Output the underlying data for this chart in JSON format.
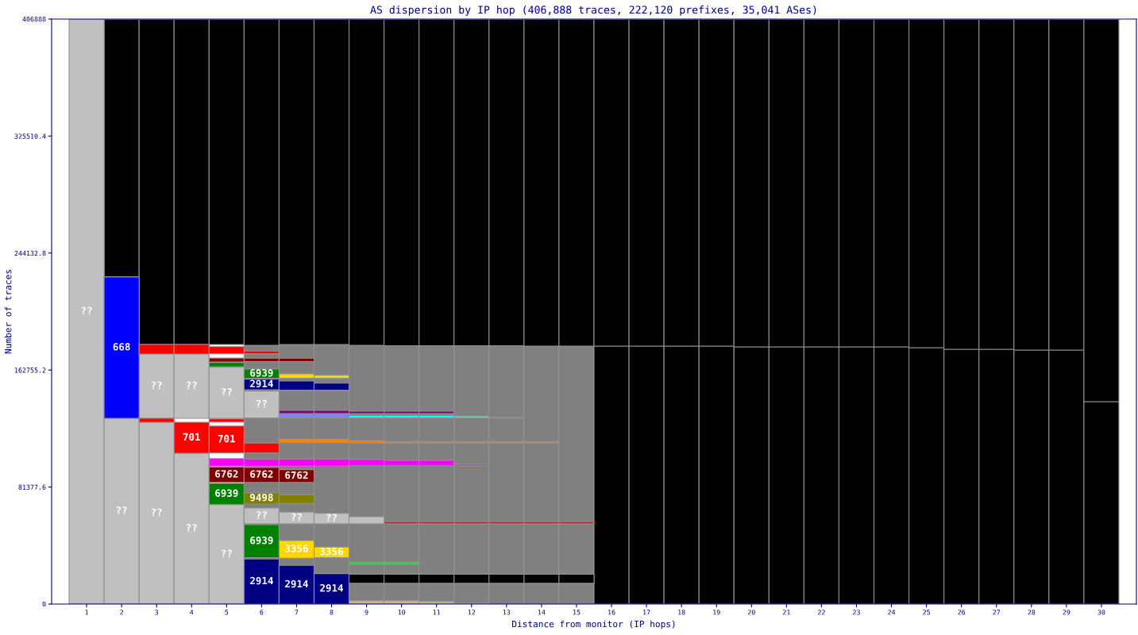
{
  "chart_data": {
    "type": "bar",
    "title": "AS dispersion by IP hop (406,888 traces, 222,120 prefixes, 35,041 ASes)",
    "xlabel": "Distance from monitor (IP hops)",
    "ylabel": "Number of traces",
    "categories": [
      "1",
      "2",
      "3",
      "4",
      "5",
      "6",
      "7",
      "8",
      "9",
      "10",
      "11",
      "12",
      "13",
      "14",
      "15",
      "16",
      "17",
      "18",
      "19",
      "20",
      "21",
      "22",
      "23",
      "24",
      "25",
      "26",
      "27",
      "28",
      "29",
      "30"
    ],
    "ylim": [
      0,
      406888
    ],
    "yticks": [
      0,
      81377.6,
      162755.2,
      244132.8,
      325510.4,
      406888
    ],
    "series": [
      {
        "color": "#808080",
        "base": [
          null,
          null,
          null,
          null,
          null,
          0,
          0,
          0,
          0,
          0,
          0,
          0,
          0,
          0,
          0,
          null,
          null,
          null,
          null,
          null,
          null,
          null,
          null,
          null,
          null,
          null,
          null,
          null,
          null,
          null
        ],
        "values": [
          null,
          null,
          null,
          null,
          null,
          180000,
          180500,
          180500,
          180000,
          179700,
          179700,
          179700,
          179700,
          179400,
          179400,
          null,
          null,
          null,
          null,
          null,
          null,
          null,
          null,
          null,
          null,
          null,
          null,
          null,
          null,
          null
        ]
      },
      {
        "color": "#000000",
        "base": [
          null,
          null,
          null,
          null,
          null,
          null,
          null,
          null,
          null,
          null,
          null,
          null,
          null,
          null,
          null,
          0,
          0,
          0,
          0,
          0,
          0,
          0,
          0,
          0,
          0,
          0,
          0,
          0,
          0,
          0
        ],
        "values": [
          null,
          null,
          null,
          null,
          null,
          null,
          null,
          null,
          null,
          null,
          null,
          null,
          null,
          null,
          null,
          179400,
          179400,
          179400,
          179400,
          178900,
          178900,
          178900,
          178900,
          178900,
          178300,
          177200,
          177200,
          176700,
          176700,
          140800
        ]
      },
      {
        "color": "#000000",
        "base": [
          null,
          227500,
          180500,
          180500,
          180500,
          180000,
          180500,
          180500,
          180000,
          179700,
          179700,
          179700,
          179700,
          179400,
          179400,
          179400,
          179400,
          179400,
          179400,
          178900,
          178900,
          178900,
          178900,
          178900,
          178300,
          177200,
          177200,
          176700,
          176700,
          140800
        ],
        "values": [
          null,
          179300,
          226300,
          226300,
          226300,
          226800,
          226300,
          226300,
          226800,
          227100,
          227100,
          227100,
          227100,
          227400,
          227400,
          227400,
          227400,
          227400,
          227400,
          227900,
          227900,
          227900,
          227900,
          227900,
          228500,
          229600,
          229600,
          230100,
          230100,
          266000
        ]
      },
      {
        "name": "??",
        "color": "#c0c0c0",
        "base": [
          0,
          0,
          0,
          0,
          0,
          55800,
          55800,
          55800,
          null,
          null,
          null,
          null,
          null,
          null,
          null,
          null,
          null,
          null,
          null,
          null,
          null,
          null,
          null,
          null,
          null,
          null,
          null,
          null,
          null,
          null
        ],
        "values": [
          406888,
          129200,
          126400,
          104900,
          69200,
          11000,
          8200,
          7300,
          null,
          null,
          null,
          null,
          null,
          null,
          null,
          null,
          null,
          null,
          null,
          null,
          null,
          null,
          null,
          null,
          null,
          null,
          null,
          null,
          null,
          null
        ]
      },
      {
        "color": "#c0c0c0",
        "base": [
          null,
          null,
          null,
          null,
          null,
          null,
          null,
          null,
          55800,
          null,
          null,
          null,
          null,
          null,
          null,
          null,
          null,
          null,
          null,
          null,
          null,
          null,
          null,
          null,
          null,
          null,
          null,
          null,
          null,
          null
        ],
        "values": [
          null,
          null,
          null,
          null,
          null,
          null,
          null,
          null,
          4900,
          null,
          null,
          null,
          null,
          null,
          null,
          null,
          null,
          null,
          null,
          null,
          null,
          null,
          null,
          null,
          null,
          null,
          null,
          null,
          null,
          null
        ]
      },
      {
        "name": "??",
        "color": "#c0c0c0",
        "base": [
          null,
          null,
          129200,
          129200,
          129200,
          129400,
          null,
          null,
          null,
          null,
          null,
          null,
          null,
          null,
          null,
          null,
          null,
          null,
          null,
          null,
          null,
          null,
          null,
          null,
          null,
          null,
          null,
          null,
          null,
          null
        ],
        "values": [
          null,
          null,
          44700,
          44700,
          35500,
          18700,
          null,
          null,
          null,
          null,
          null,
          null,
          null,
          null,
          null,
          null,
          null,
          null,
          null,
          null,
          null,
          null,
          null,
          null,
          null,
          null,
          null,
          null,
          null,
          null
        ]
      },
      {
        "name": "668",
        "color": "#0000ff",
        "base": [
          null,
          129200,
          null,
          null,
          null,
          null,
          null,
          null,
          null,
          null,
          null,
          null,
          null,
          null,
          null,
          null,
          null,
          null,
          null,
          null,
          null,
          null,
          null,
          null,
          null,
          null,
          null,
          null,
          null,
          null
        ],
        "values": [
          null,
          98300,
          null,
          null,
          null,
          null,
          null,
          null,
          null,
          null,
          null,
          null,
          null,
          null,
          null,
          null,
          null,
          null,
          null,
          null,
          null,
          null,
          null,
          null,
          null,
          null,
          null,
          null,
          null,
          null
        ]
      },
      {
        "name": "701",
        "color": "#ff0000",
        "base": [
          null,
          null,
          null,
          104900,
          105100,
          null,
          null,
          null,
          null,
          null,
          null,
          null,
          null,
          null,
          null,
          null,
          null,
          null,
          null,
          null,
          null,
          null,
          null,
          null,
          null,
          null,
          null,
          null,
          null,
          null
        ],
        "values": [
          null,
          null,
          null,
          21500,
          18700,
          null,
          null,
          null,
          null,
          null,
          null,
          null,
          null,
          null,
          null,
          null,
          null,
          null,
          null,
          null,
          null,
          null,
          null,
          null,
          null,
          null,
          null,
          null,
          null,
          null
        ]
      },
      {
        "color": "#ff0000",
        "base": [
          null,
          null,
          null,
          null,
          null,
          105100,
          null,
          null,
          null,
          null,
          null,
          null,
          null,
          null,
          null,
          null,
          null,
          null,
          null,
          null,
          null,
          null,
          null,
          null,
          null,
          null,
          null,
          null,
          null,
          null
        ],
        "values": [
          null,
          null,
          null,
          null,
          null,
          6800,
          null,
          null,
          null,
          null,
          null,
          null,
          null,
          null,
          null,
          null,
          null,
          null,
          null,
          null,
          null,
          null,
          null,
          null,
          null,
          null,
          null,
          null,
          null,
          null
        ]
      },
      {
        "color": "#ff0000",
        "base": [
          null,
          null,
          126400,
          null,
          126600,
          null,
          null,
          null,
          null,
          null,
          null,
          null,
          null,
          null,
          null,
          null,
          null,
          null,
          null,
          null,
          null,
          null,
          null,
          null,
          null,
          null,
          null,
          null,
          null,
          null
        ],
        "values": [
          null,
          null,
          2800,
          null,
          2200,
          null,
          null,
          null,
          null,
          null,
          null,
          null,
          null,
          null,
          null,
          null,
          null,
          null,
          null,
          null,
          null,
          null,
          null,
          null,
          null,
          null,
          null,
          null,
          null,
          null
        ]
      },
      {
        "color": "#ff0000",
        "base": [
          null,
          null,
          173900,
          173900,
          174100,
          174100,
          null,
          null,
          null,
          null,
          null,
          null,
          null,
          null,
          null,
          null,
          null,
          null,
          null,
          null,
          null,
          null,
          null,
          null,
          null,
          null,
          null,
          null,
          null,
          null
        ],
        "values": [
          null,
          null,
          6600,
          6600,
          4900,
          1900,
          null,
          null,
          null,
          null,
          null,
          null,
          null,
          null,
          null,
          null,
          null,
          null,
          null,
          null,
          null,
          null,
          null,
          null,
          null,
          null,
          null,
          null,
          null,
          null
        ]
      },
      {
        "name": "2914",
        "color": "#000080",
        "base": [
          null,
          null,
          null,
          null,
          null,
          0,
          0,
          0,
          null,
          null,
          null,
          null,
          null,
          null,
          null,
          null,
          null,
          null,
          null,
          null,
          null,
          null,
          null,
          null,
          null,
          null,
          null,
          null,
          null,
          null
        ],
        "values": [
          null,
          null,
          null,
          null,
          null,
          31300,
          26900,
          21200,
          null,
          null,
          null,
          null,
          null,
          null,
          null,
          null,
          null,
          null,
          null,
          null,
          null,
          null,
          null,
          null,
          null,
          null,
          null,
          null,
          null,
          null
        ]
      },
      {
        "name": "2914",
        "color": "#000080",
        "base": [
          null,
          null,
          null,
          null,
          null,
          149100,
          null,
          null,
          null,
          null,
          null,
          null,
          null,
          null,
          null,
          null,
          null,
          null,
          null,
          null,
          null,
          null,
          null,
          null,
          null,
          null,
          null,
          null,
          null,
          null
        ],
        "values": [
          null,
          null,
          null,
          null,
          null,
          7300,
          null,
          null,
          null,
          null,
          null,
          null,
          null,
          null,
          null,
          null,
          null,
          null,
          null,
          null,
          null,
          null,
          null,
          null,
          null,
          null,
          null,
          null,
          null,
          null
        ]
      },
      {
        "color": "#000080",
        "base": [
          null,
          null,
          null,
          null,
          null,
          null,
          148700,
          148700,
          null,
          null,
          null,
          null,
          null,
          null,
          null,
          null,
          null,
          null,
          null,
          null,
          null,
          null,
          null,
          null,
          null,
          null,
          null,
          null,
          null,
          null
        ],
        "values": [
          null,
          null,
          null,
          null,
          null,
          null,
          6400,
          4900,
          null,
          null,
          null,
          null,
          null,
          null,
          null,
          null,
          null,
          null,
          null,
          null,
          null,
          null,
          null,
          null,
          null,
          null,
          null,
          null,
          null,
          null
        ]
      },
      {
        "name": "6939",
        "color": "#008000",
        "base": [
          null,
          null,
          null,
          null,
          69200,
          32200,
          null,
          null,
          null,
          null,
          null,
          null,
          null,
          null,
          null,
          null,
          null,
          null,
          null,
          null,
          null,
          null,
          null,
          null,
          null,
          null,
          null,
          null,
          null,
          null
        ],
        "values": [
          null,
          null,
          null,
          null,
          14700,
          23000,
          null,
          null,
          null,
          null,
          null,
          null,
          null,
          null,
          null,
          null,
          null,
          null,
          null,
          null,
          null,
          null,
          null,
          null,
          null,
          null,
          null,
          null,
          null,
          null
        ]
      },
      {
        "name": "6939",
        "color": "#008000",
        "base": [
          null,
          null,
          null,
          null,
          null,
          157000,
          null,
          null,
          null,
          null,
          null,
          null,
          null,
          null,
          null,
          null,
          null,
          null,
          null,
          null,
          null,
          null,
          null,
          null,
          null,
          null,
          null,
          null,
          null,
          null
        ],
        "values": [
          null,
          null,
          null,
          null,
          null,
          6400,
          null,
          null,
          null,
          null,
          null,
          null,
          null,
          null,
          null,
          null,
          null,
          null,
          null,
          null,
          null,
          null,
          null,
          null,
          null,
          null,
          null,
          null,
          null,
          null
        ]
      },
      {
        "color": "#008000",
        "base": [
          null,
          null,
          null,
          null,
          165100,
          null,
          null,
          null,
          null,
          null,
          null,
          null,
          null,
          null,
          null,
          null,
          null,
          null,
          null,
          null,
          null,
          null,
          null,
          null,
          null,
          null,
          null,
          null,
          null,
          null
        ],
        "values": [
          null,
          null,
          null,
          null,
          2900,
          null,
          null,
          null,
          null,
          null,
          null,
          null,
          null,
          null,
          null,
          null,
          null,
          null,
          null,
          null,
          null,
          null,
          null,
          null,
          null,
          null,
          null,
          null,
          null,
          null
        ]
      },
      {
        "name": "6762",
        "color": "#800000",
        "base": [
          null,
          null,
          null,
          null,
          84600,
          84600,
          84600,
          null,
          null,
          null,
          null,
          null,
          null,
          null,
          null,
          null,
          null,
          null,
          null,
          null,
          null,
          null,
          null,
          null,
          null,
          null,
          null,
          null,
          null,
          null
        ],
        "values": [
          null,
          null,
          null,
          null,
          10700,
          10400,
          8900,
          null,
          null,
          null,
          null,
          null,
          null,
          null,
          null,
          null,
          null,
          null,
          null,
          null,
          null,
          null,
          null,
          null,
          null,
          null,
          null,
          null,
          null,
          null
        ]
      },
      {
        "color": "#800000",
        "base": [
          null,
          null,
          null,
          null,
          168400,
          168600,
          168600,
          null,
          null,
          null,
          null,
          null,
          null,
          null,
          null,
          null,
          null,
          null,
          null,
          null,
          null,
          null,
          null,
          null,
          null,
          null,
          null,
          null,
          null,
          null
        ],
        "values": [
          null,
          null,
          null,
          null,
          2700,
          2400,
          2400,
          null,
          null,
          null,
          null,
          null,
          null,
          null,
          null,
          null,
          null,
          null,
          null,
          null,
          null,
          null,
          null,
          null,
          null,
          null,
          null,
          null,
          null,
          null
        ]
      },
      {
        "color": "#ff00ff",
        "base": [
          null,
          null,
          null,
          null,
          95900,
          95900,
          95900,
          95900,
          96200,
          96200,
          96200,
          96200,
          null,
          null,
          null,
          null,
          null,
          null,
          null,
          null,
          null,
          null,
          null,
          null,
          null,
          null,
          null,
          null,
          null,
          null
        ],
        "values": [
          null,
          null,
          null,
          null,
          5300,
          5000,
          5000,
          5000,
          4300,
          3800,
          3800,
          1200,
          null,
          null,
          null,
          null,
          null,
          null,
          null,
          null,
          null,
          null,
          null,
          null,
          null,
          null,
          null,
          null,
          null,
          null
        ]
      },
      {
        "name": "9498",
        "color": "#808000",
        "base": [
          null,
          null,
          null,
          null,
          null,
          69600,
          null,
          null,
          null,
          null,
          null,
          null,
          null,
          null,
          null,
          null,
          null,
          null,
          null,
          null,
          null,
          null,
          null,
          null,
          null,
          null,
          null,
          null,
          null,
          null
        ],
        "values": [
          null,
          null,
          null,
          null,
          null,
          7900,
          null,
          null,
          null,
          null,
          null,
          null,
          null,
          null,
          null,
          null,
          null,
          null,
          null,
          null,
          null,
          null,
          null,
          null,
          null,
          null,
          null,
          null,
          null,
          null
        ]
      },
      {
        "color": "#808000",
        "base": [
          null,
          null,
          null,
          null,
          null,
          null,
          70000,
          null,
          null,
          null,
          null,
          null,
          null,
          null,
          null,
          null,
          null,
          null,
          null,
          null,
          null,
          null,
          null,
          null,
          null,
          null,
          null,
          null,
          null,
          null
        ],
        "values": [
          null,
          null,
          null,
          null,
          null,
          null,
          6000,
          null,
          null,
          null,
          null,
          null,
          null,
          null,
          null,
          null,
          null,
          null,
          null,
          null,
          null,
          null,
          null,
          null,
          null,
          null,
          null,
          null,
          null,
          null
        ]
      },
      {
        "name": "3356",
        "color": "#ffd700",
        "base": [
          null,
          null,
          null,
          null,
          null,
          null,
          31900,
          32200,
          null,
          null,
          null,
          null,
          null,
          null,
          null,
          null,
          null,
          null,
          null,
          null,
          null,
          null,
          null,
          null,
          null,
          null,
          null,
          null,
          null,
          null
        ],
        "values": [
          null,
          null,
          null,
          null,
          null,
          null,
          12300,
          7500,
          null,
          null,
          null,
          null,
          null,
          null,
          null,
          null,
          null,
          null,
          null,
          null,
          null,
          null,
          null,
          null,
          null,
          null,
          null,
          null,
          null,
          null
        ]
      },
      {
        "color": "#ffd700",
        "base": [
          null,
          null,
          null,
          null,
          null,
          null,
          157000,
          157000,
          null,
          null,
          null,
          null,
          null,
          null,
          null,
          null,
          null,
          null,
          null,
          null,
          null,
          null,
          null,
          null,
          null,
          null,
          null,
          null,
          null,
          null
        ],
        "values": [
          null,
          null,
          null,
          null,
          null,
          null,
          3100,
          2200,
          null,
          null,
          null,
          null,
          null,
          null,
          null,
          null,
          null,
          null,
          null,
          null,
          null,
          null,
          null,
          null,
          null,
          null,
          null,
          null,
          null,
          null
        ]
      },
      {
        "color": "#ff8000",
        "base": [
          null,
          null,
          null,
          null,
          null,
          null,
          112200,
          112200,
          111900,
          111900,
          111900,
          111900,
          111900,
          111900,
          null,
          null,
          null,
          null,
          null,
          null,
          null,
          null,
          null,
          null,
          null,
          null,
          null,
          null,
          null,
          null
        ],
        "values": [
          null,
          null,
          null,
          null,
          null,
          null,
          2500,
          2500,
          1800,
          1200,
          1200,
          1200,
          1200,
          1200,
          null,
          null,
          null,
          null,
          null,
          null,
          null,
          null,
          null,
          null,
          null,
          null,
          null,
          null,
          null,
          null
        ]
      },
      {
        "color": "#00ffff",
        "base": [
          null,
          null,
          null,
          null,
          null,
          null,
          null,
          null,
          129400,
          129400,
          129400,
          129400,
          129400,
          null,
          null,
          null,
          null,
          null,
          null,
          null,
          null,
          null,
          null,
          null,
          null,
          null,
          null,
          null,
          null,
          null
        ],
        "values": [
          null,
          null,
          null,
          null,
          null,
          null,
          null,
          null,
          1800,
          1800,
          1800,
          1400,
          600,
          null,
          null,
          null,
          null,
          null,
          null,
          null,
          null,
          null,
          null,
          null,
          null,
          null,
          null,
          null,
          null,
          null
        ]
      },
      {
        "color": "#8080ff",
        "base": [
          null,
          null,
          null,
          null,
          null,
          null,
          129400,
          129400,
          null,
          null,
          null,
          null,
          null,
          null,
          null,
          null,
          null,
          null,
          null,
          null,
          null,
          null,
          null,
          null,
          null,
          null,
          null,
          null,
          null,
          null
        ],
        "values": [
          null,
          null,
          null,
          null,
          null,
          null,
          2700,
          2700,
          null,
          null,
          null,
          null,
          null,
          null,
          null,
          null,
          null,
          null,
          null,
          null,
          null,
          null,
          null,
          null,
          null,
          null,
          null,
          null,
          null,
          null
        ]
      },
      {
        "color": "#800080",
        "base": [
          null,
          null,
          null,
          null,
          null,
          null,
          132500,
          132500,
          132500,
          132500,
          132500,
          null,
          null,
          null,
          null,
          null,
          null,
          null,
          null,
          null,
          null,
          null,
          null,
          null,
          null,
          null,
          null,
          null,
          null,
          null
        ],
        "values": [
          null,
          null,
          null,
          null,
          null,
          null,
          2200,
          2200,
          1700,
          1700,
          1700,
          null,
          null,
          null,
          null,
          null,
          null,
          null,
          null,
          null,
          null,
          null,
          null,
          null,
          null,
          null,
          null,
          null,
          null,
          null
        ]
      },
      {
        "color": "#b22222",
        "base": [
          null,
          null,
          null,
          null,
          null,
          null,
          null,
          null,
          null,
          55800,
          55800,
          55800,
          55800,
          55800,
          55800,
          null,
          null,
          null,
          null,
          null,
          null,
          null,
          null,
          null,
          null,
          null,
          null,
          null,
          null,
          null
        ],
        "values": [
          null,
          null,
          null,
          null,
          null,
          null,
          null,
          null,
          null,
          1500,
          1500,
          1500,
          1500,
          1500,
          1500,
          null,
          null,
          null,
          null,
          null,
          null,
          null,
          null,
          null,
          null,
          null,
          null,
          null,
          null,
          null
        ]
      },
      {
        "color": "#00ff00",
        "base": [
          null,
          null,
          null,
          null,
          null,
          null,
          null,
          null,
          27600,
          27600,
          null,
          null,
          null,
          null,
          null,
          null,
          null,
          null,
          null,
          null,
          null,
          null,
          null,
          null,
          null,
          null,
          null,
          null,
          null,
          null
        ],
        "values": [
          null,
          null,
          null,
          null,
          null,
          null,
          null,
          null,
          1500,
          1500,
          null,
          null,
          null,
          null,
          null,
          null,
          null,
          null,
          null,
          null,
          null,
          null,
          null,
          null,
          null,
          null,
          null,
          null,
          null,
          null
        ]
      },
      {
        "color": "#d2b48c",
        "base": [
          null,
          null,
          null,
          null,
          null,
          null,
          null,
          null,
          0,
          0,
          0,
          0,
          null,
          null,
          null,
          null,
          null,
          null,
          null,
          null,
          null,
          null,
          null,
          null,
          null,
          null,
          null,
          null,
          null,
          null
        ],
        "values": [
          null,
          null,
          null,
          null,
          null,
          null,
          null,
          null,
          2400,
          2400,
          1800,
          700,
          null,
          null,
          null,
          null,
          null,
          null,
          null,
          null,
          null,
          null,
          null,
          null,
          null,
          null,
          null,
          null,
          null,
          null
        ]
      },
      {
        "color": "#000000",
        "base": [
          null,
          null,
          null,
          null,
          null,
          null,
          null,
          null,
          14400,
          14400,
          14400,
          14400,
          14400,
          14400,
          14400,
          null,
          null,
          null,
          null,
          null,
          null,
          null,
          null,
          null,
          null,
          null,
          null,
          null,
          null,
          null
        ],
        "values": [
          null,
          null,
          null,
          null,
          null,
          null,
          null,
          null,
          6400,
          6400,
          6400,
          6400,
          6400,
          6400,
          6400,
          null,
          null,
          null,
          null,
          null,
          null,
          null,
          null,
          null,
          null,
          null,
          null,
          null,
          null,
          null
        ]
      }
    ]
  }
}
